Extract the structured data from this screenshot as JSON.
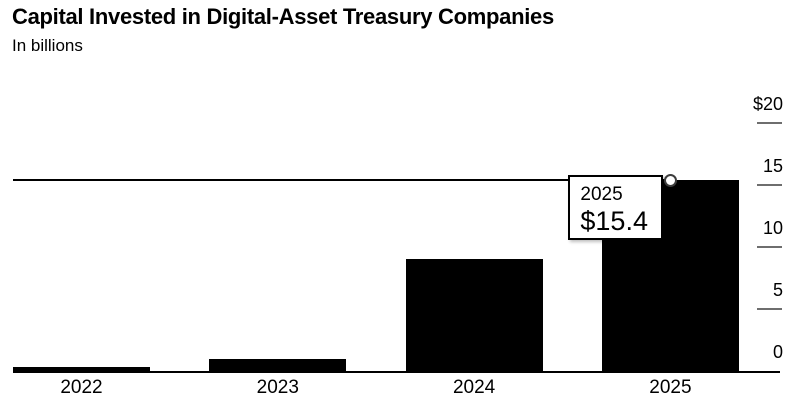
{
  "title": "Capital Invested in Digital-Asset Treasury Companies",
  "subtitle": "In billions",
  "chart_data": {
    "type": "bar",
    "title": "Capital Invested in Digital-Asset Treasury Companies",
    "subtitle": "In billions",
    "categories": [
      "2022",
      "2023",
      "2024",
      "2025"
    ],
    "values": [
      0.3,
      1.0,
      9.0,
      15.4
    ],
    "xlabel": "",
    "ylabel": "In billions",
    "ylim": [
      0,
      20
    ],
    "yticks": [
      {
        "value": 20,
        "label": "$20"
      },
      {
        "value": 15,
        "label": "15"
      },
      {
        "value": 10,
        "label": "10"
      },
      {
        "value": 5,
        "label": "5"
      },
      {
        "value": 0,
        "label": "0"
      }
    ],
    "grid": false,
    "legend": false,
    "bar_color": "#000000",
    "axis_side": "right",
    "hover": {
      "category": "2025",
      "value": 15.4,
      "tooltip_year": "2025",
      "tooltip_value": "$15.4"
    }
  }
}
